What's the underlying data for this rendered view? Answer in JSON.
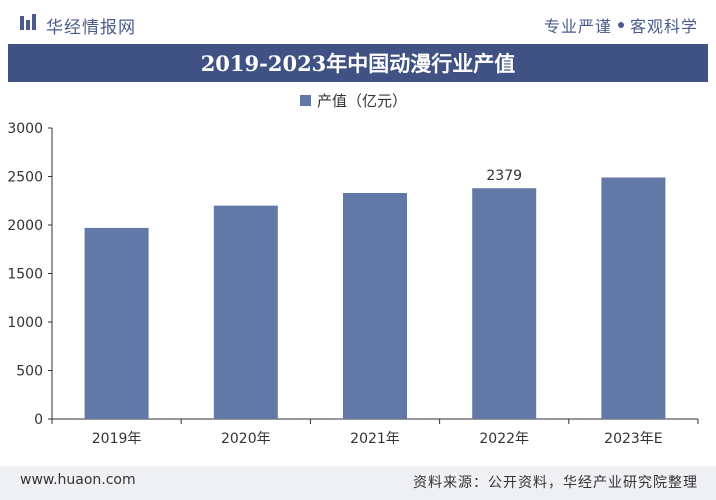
{
  "header": {
    "brand": "华经情报网",
    "slogan_left": "专业严谨",
    "slogan_right": "客观科学"
  },
  "footer": {
    "url": "www.huaon.com",
    "source": "资料来源：公开资料，华经产业研究院整理"
  },
  "colors": {
    "bar": "#6278a6",
    "title_bg": "#3f5283",
    "brand": "#4a5b8c"
  },
  "chart_data": {
    "type": "bar",
    "title": "2019-2023年中国动漫行业产值",
    "categories": [
      "2019年",
      "2020年",
      "2021年",
      "2022年",
      "2023年E"
    ],
    "series": [
      {
        "name": "产值（亿元）",
        "values": [
          1970,
          2200,
          2330,
          2379,
          2490
        ]
      }
    ],
    "data_labels": [
      null,
      null,
      null,
      "2379",
      null
    ],
    "yticks": [
      "0",
      "500",
      "1000",
      "1500",
      "2000",
      "2500",
      "3000"
    ],
    "ylim": [
      0,
      3000
    ],
    "grid": false,
    "legend": "top-center"
  }
}
